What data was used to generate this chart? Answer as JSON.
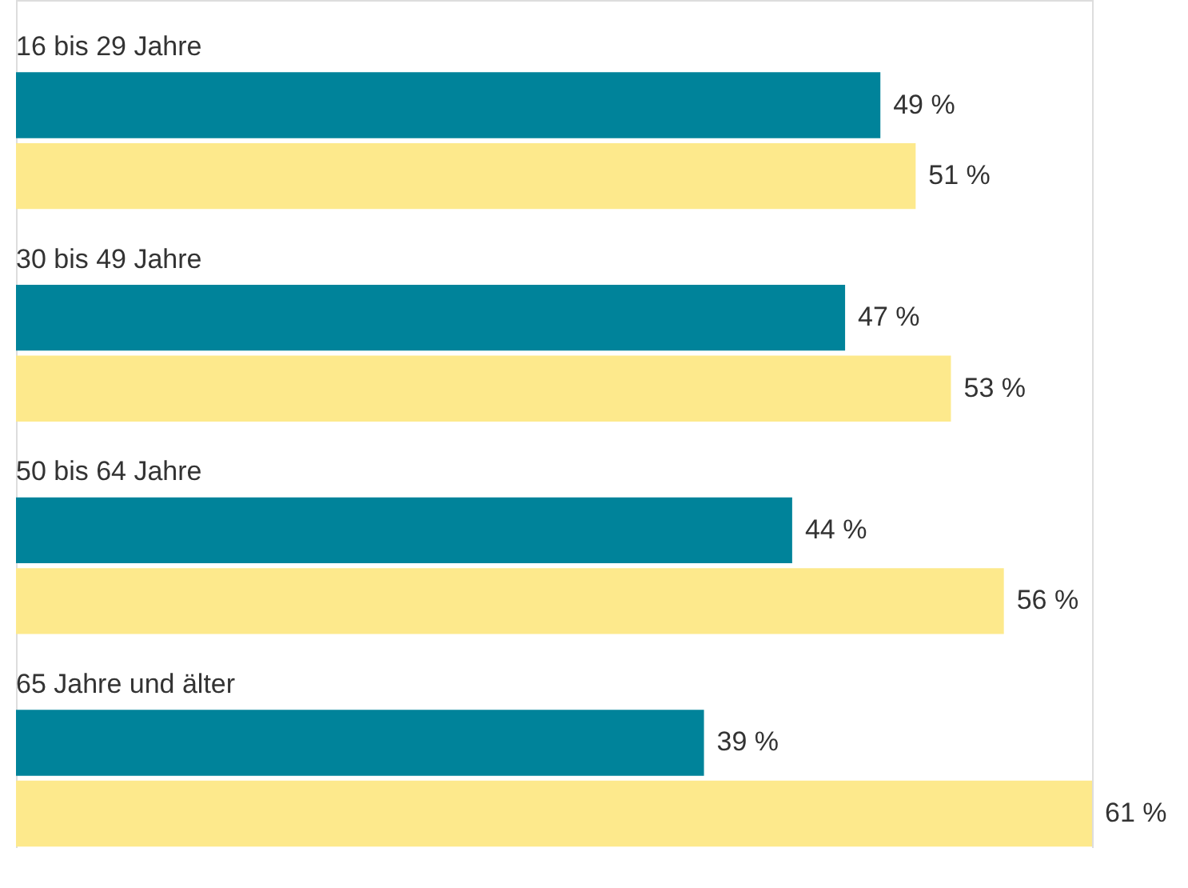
{
  "chart_data": {
    "type": "bar",
    "orientation": "horizontal",
    "categories": [
      "16 bis 29 Jahre",
      "30 bis 49 Jahre",
      "50 bis 64 Jahre",
      "65 Jahre und älter"
    ],
    "series": [
      {
        "color": "#00839a",
        "values": [
          49,
          47,
          44,
          39
        ],
        "value_labels": [
          "49 %",
          "47 %",
          "44 %",
          "39 %"
        ]
      },
      {
        "color": "#fde98c",
        "values": [
          51,
          53,
          56,
          61
        ],
        "value_labels": [
          "51 %",
          "53 %",
          "56 %",
          "61 %"
        ]
      }
    ],
    "grid": false
  }
}
